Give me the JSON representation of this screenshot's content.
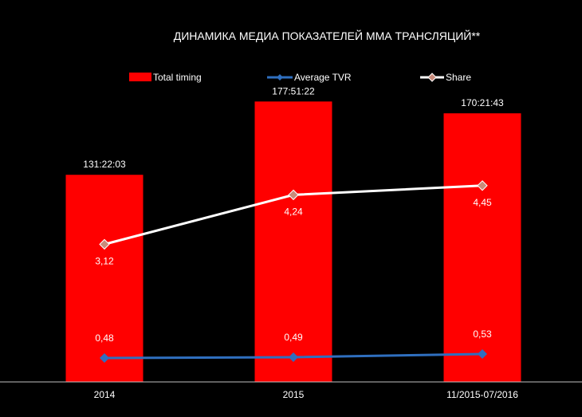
{
  "chart_data": {
    "type": "bar",
    "title": "ДИНАМИКА МЕДИА ПОКАЗАТЕЛЕЙ ММА ТРАНСЛЯЦИЙ**",
    "categories": [
      "2014",
      "2015",
      "11/2015-07/2016"
    ],
    "series": [
      {
        "name": "Total timing",
        "kind": "bar",
        "color": "#ff0000",
        "values_minutes": [
          7882.05,
          10671.37,
          10221.72
        ],
        "labels": [
          "131:22:03",
          "177:51:22",
          "170:21:43"
        ]
      },
      {
        "name": "Average TVR",
        "kind": "line",
        "color": "#2f6fbf",
        "values": [
          0.48,
          0.49,
          0.53
        ],
        "labels": [
          "0,48",
          "0,49",
          "0,53"
        ]
      },
      {
        "name": "Share",
        "kind": "line",
        "color": "#ffffff",
        "marker_color": "#c98a7a",
        "values": [
          3.12,
          4.24,
          4.45
        ],
        "labels": [
          "3,12",
          "4,24",
          "4,45"
        ]
      }
    ],
    "xlabel": "",
    "ylabel": "",
    "ylim_timing_minutes": [
      0,
      11500
    ],
    "ylim_share": [
      0,
      6.85
    ],
    "grid": false,
    "legend": "top"
  }
}
